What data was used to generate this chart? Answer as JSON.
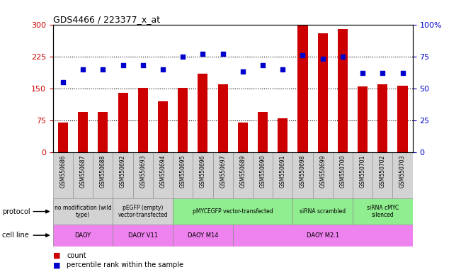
{
  "title": "GDS4466 / 223377_x_at",
  "samples": [
    "GSM550686",
    "GSM550687",
    "GSM550688",
    "GSM550692",
    "GSM550693",
    "GSM550694",
    "GSM550695",
    "GSM550696",
    "GSM550697",
    "GSM550689",
    "GSM550690",
    "GSM550691",
    "GSM550698",
    "GSM550699",
    "GSM550700",
    "GSM550701",
    "GSM550702",
    "GSM550703"
  ],
  "counts": [
    70,
    95,
    95,
    140,
    152,
    120,
    152,
    185,
    160,
    70,
    95,
    80,
    298,
    280,
    290,
    155,
    160,
    157
  ],
  "percentiles": [
    55,
    65,
    65,
    68,
    68,
    65,
    75,
    77,
    77,
    63,
    68,
    65,
    76,
    73,
    75,
    62,
    62,
    62
  ],
  "ylim_left": [
    0,
    300
  ],
  "ylim_right": [
    0,
    100
  ],
  "yticks_left": [
    0,
    75,
    150,
    225,
    300
  ],
  "yticks_right": [
    0,
    25,
    50,
    75,
    100
  ],
  "bar_color": "#cc0000",
  "dot_color": "#0000cc",
  "protocol_groups": [
    {
      "label": "no modification (wild\ntype)",
      "start": 0,
      "end": 3,
      "color": "#d3d3d3"
    },
    {
      "label": "pEGFP (empty)\nvector-transfected",
      "start": 3,
      "end": 6,
      "color": "#d3d3d3"
    },
    {
      "label": "pMYCEGFP vector-transfected",
      "start": 6,
      "end": 12,
      "color": "#90ee90"
    },
    {
      "label": "siRNA scrambled",
      "start": 12,
      "end": 15,
      "color": "#90ee90"
    },
    {
      "label": "siRNA cMYC\nsilenced",
      "start": 15,
      "end": 18,
      "color": "#90ee90"
    }
  ],
  "cell_line_groups": [
    {
      "label": "DAOY",
      "start": 0,
      "end": 3,
      "color": "#ee82ee"
    },
    {
      "label": "DAOY V11",
      "start": 3,
      "end": 6,
      "color": "#ee82ee"
    },
    {
      "label": "DAOY M14",
      "start": 6,
      "end": 9,
      "color": "#ee82ee"
    },
    {
      "label": "DAOY M2.1",
      "start": 9,
      "end": 18,
      "color": "#ee82ee"
    }
  ],
  "legend_count_label": "count",
  "legend_pct_label": "percentile rank within the sample",
  "left_axis_color": "#cc0000",
  "right_axis_color": "#0000cc",
  "xtick_bg": "#d3d3d3"
}
